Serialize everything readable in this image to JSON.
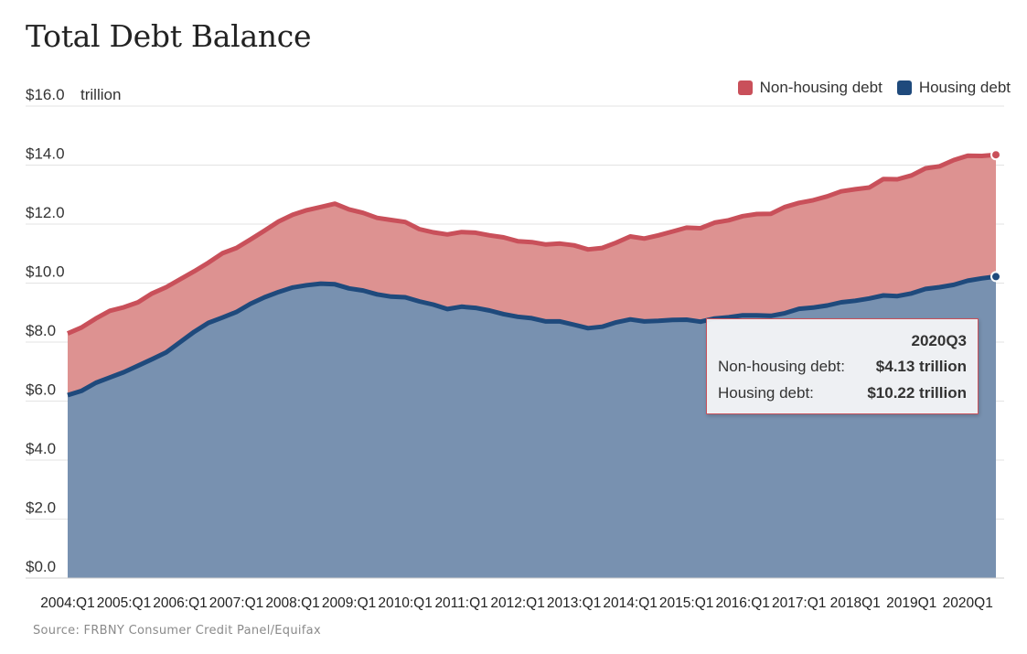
{
  "title": "Total Debt Balance",
  "source": "Source: FRBNY Consumer Credit Panel/Equifax",
  "colors": {
    "non_housing_line": "#c9505a",
    "non_housing_fill": "#dd9291",
    "housing_line": "#1f4a7c",
    "housing_fill": "#7891b0",
    "grid": "#e3e3e3"
  },
  "legend": [
    {
      "label": "Non-housing debt",
      "color": "#c9505a"
    },
    {
      "label": "Housing debt",
      "color": "#1f4a7c"
    }
  ],
  "tooltip": {
    "period": "2020Q3",
    "rows": [
      {
        "label": "Non-housing debt:",
        "value": "$4.13 trillion"
      },
      {
        "label": "Housing debt:",
        "value": "$10.22 trillion"
      }
    ]
  },
  "chart_data": {
    "type": "area",
    "stacked": true,
    "title": "Total Debt Balance",
    "ylabel": "trillion",
    "ylim": [
      0,
      16
    ],
    "yticks": [
      "$0.0",
      "$2.0",
      "$4.0",
      "$6.0",
      "$8.0",
      "$10.0",
      "$12.0",
      "$14.0",
      "$16.0"
    ],
    "x_tick_labels": [
      "2004:Q1",
      "2005:Q1",
      "2006:Q1",
      "2007:Q1",
      "2008:Q1",
      "2009:Q1",
      "2010:Q1",
      "2011:Q1",
      "2012:Q1",
      "2013:Q1",
      "2014:Q1",
      "2015:Q1",
      "2016:Q1",
      "2017:Q1",
      "2018Q1",
      "2019Q1",
      "2020Q1"
    ],
    "x_start": "2004Q1",
    "x_end": "2020Q3",
    "grid": true,
    "legend_position": "top-right",
    "series": [
      {
        "name": "Housing debt",
        "values": [
          6.2,
          6.35,
          6.62,
          6.8,
          6.98,
          7.2,
          7.42,
          7.65,
          8.0,
          8.35,
          8.65,
          8.83,
          9.02,
          9.3,
          9.52,
          9.7,
          9.85,
          9.93,
          9.98,
          9.96,
          9.82,
          9.75,
          9.62,
          9.54,
          9.52,
          9.38,
          9.27,
          9.12,
          9.2,
          9.16,
          9.07,
          8.95,
          8.86,
          8.81,
          8.7,
          8.7,
          8.59,
          8.47,
          8.52,
          8.67,
          8.77,
          8.7,
          8.72,
          8.75,
          8.76,
          8.69,
          8.8,
          8.84,
          8.91,
          8.91,
          8.89,
          8.98,
          9.13,
          9.17,
          9.24,
          9.35,
          9.4,
          9.48,
          9.58,
          9.56,
          9.65,
          9.8,
          9.86,
          9.94,
          10.08,
          10.16,
          10.22
        ]
      },
      {
        "name": "Non-housing debt",
        "values": [
          2.09,
          2.15,
          2.18,
          2.26,
          2.2,
          2.15,
          2.23,
          2.21,
          2.13,
          2.05,
          2.04,
          2.18,
          2.17,
          2.18,
          2.26,
          2.39,
          2.47,
          2.54,
          2.6,
          2.73,
          2.68,
          2.63,
          2.59,
          2.6,
          2.55,
          2.45,
          2.45,
          2.53,
          2.53,
          2.55,
          2.55,
          2.6,
          2.56,
          2.58,
          2.61,
          2.64,
          2.69,
          2.67,
          2.67,
          2.7,
          2.81,
          2.81,
          2.9,
          3.0,
          3.12,
          3.17,
          3.25,
          3.29,
          3.36,
          3.43,
          3.46,
          3.6,
          3.59,
          3.64,
          3.7,
          3.76,
          3.78,
          3.76,
          3.95,
          3.96,
          4.0,
          4.09,
          4.1,
          4.23,
          4.24,
          4.15,
          4.13
        ]
      }
    ]
  }
}
